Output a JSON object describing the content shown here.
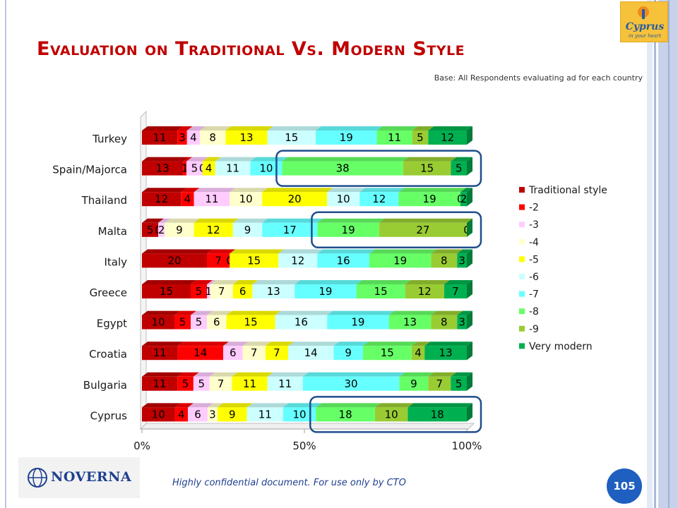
{
  "slide": {
    "title": "Evaluation on Traditional Vs. Modern Style",
    "base_note": "Base: All Respondents evaluating ad for each country",
    "confidential_note": "Highly confidential document. For use only by CTO",
    "page_number": "105",
    "footer_logo_text": "NOVERNA",
    "brand_logo_text": "Cyprus",
    "brand_logo_tagline": "in your heart"
  },
  "colors": {
    "title": "#c00000",
    "series": [
      "#c00000",
      "#ff0000",
      "#ffccff",
      "#ffffcc",
      "#ffff00",
      "#ccffff",
      "#66ffff",
      "#66ff66",
      "#99cc33",
      "#00b050"
    ],
    "highlight_box": "#1f4e8c"
  },
  "chart_data": {
    "type": "bar",
    "orientation": "horizontal",
    "stacked": "100%",
    "categories": [
      "Turkey",
      "Spain/Majorca",
      "Thailand",
      "Malta",
      "Italy",
      "Greece",
      "Egypt",
      "Croatia",
      "Bulgaria",
      "Cyprus"
    ],
    "series": [
      {
        "name": "Traditional style",
        "values": [
          11,
          13,
          12,
          5,
          20,
          15,
          10,
          11,
          11,
          10
        ]
      },
      {
        "name": "-2",
        "values": [
          3,
          1,
          4,
          0,
          7,
          5,
          5,
          14,
          5,
          4
        ]
      },
      {
        "name": "-3",
        "values": [
          4,
          5,
          11,
          2,
          0,
          1,
          5,
          6,
          5,
          6
        ]
      },
      {
        "name": "-4",
        "values": [
          8,
          0,
          10,
          9,
          0,
          7,
          6,
          7,
          7,
          3
        ]
      },
      {
        "name": "-5",
        "values": [
          13,
          4,
          20,
          12,
          15,
          6,
          15,
          7,
          11,
          9
        ]
      },
      {
        "name": "-6",
        "values": [
          15,
          11,
          10,
          9,
          12,
          13,
          16,
          14,
          11,
          11
        ]
      },
      {
        "name": "-7",
        "values": [
          19,
          10,
          12,
          17,
          16,
          19,
          19,
          9,
          30,
          10
        ]
      },
      {
        "name": "-8",
        "values": [
          11,
          38,
          19,
          19,
          19,
          15,
          13,
          15,
          9,
          18
        ]
      },
      {
        "name": "-9",
        "values": [
          5,
          15,
          0,
          27,
          8,
          12,
          8,
          4,
          7,
          10
        ]
      },
      {
        "name": "Very modern",
        "values": [
          12,
          5,
          2,
          0,
          3,
          7,
          3,
          13,
          5,
          18
        ]
      }
    ],
    "x_ticks": [
      "0%",
      "50%",
      "100%"
    ],
    "xlim": [
      0,
      100
    ],
    "legend_position": "right",
    "highlighted_segments": [
      {
        "category": "Spain/Majorca",
        "series": [
          "-8",
          "-9",
          "Very modern"
        ]
      },
      {
        "category": "Malta",
        "series": [
          "-8",
          "-9",
          "Very modern"
        ]
      },
      {
        "category": "Cyprus",
        "series": [
          "-8",
          "-9",
          "Very modern"
        ]
      }
    ]
  }
}
